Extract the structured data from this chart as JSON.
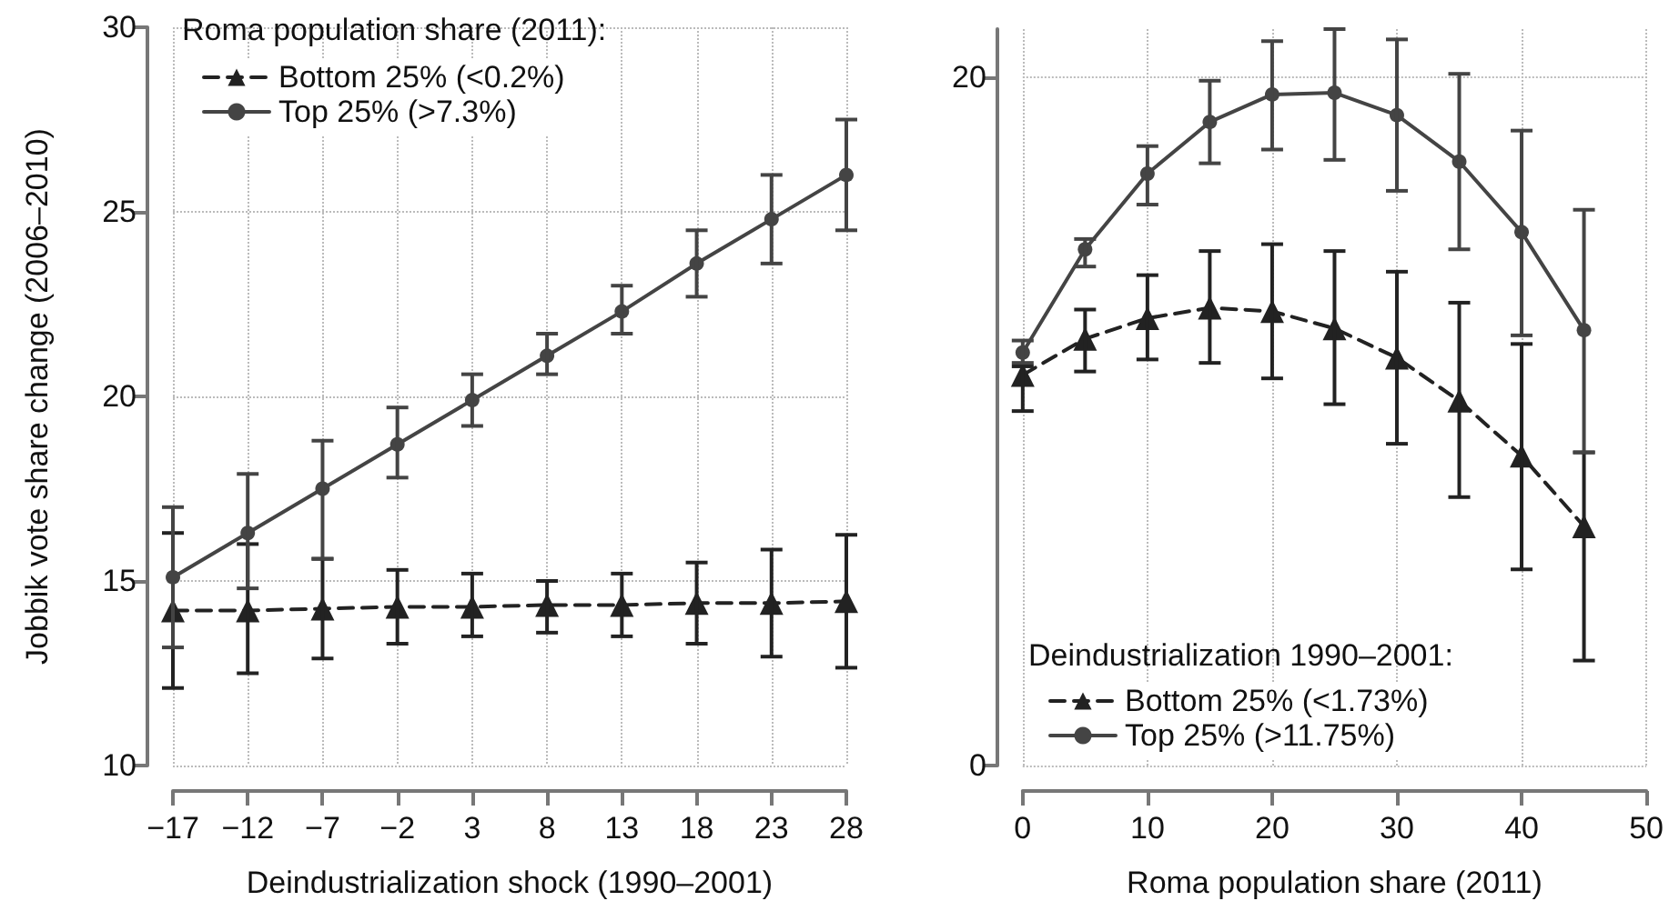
{
  "chart_data": [
    {
      "type": "line",
      "xlabel": "Deindustrialization shock (1990–2001)",
      "ylabel": "Jobbik vote share change (2006–2010)",
      "legend_title": "Roma population share (2011):",
      "x": [
        -17,
        -12,
        -7,
        -2,
        3,
        8,
        13,
        18,
        23,
        28
      ],
      "xlim": [
        -17,
        28
      ],
      "xticks": [
        -17,
        -12,
        -7,
        -2,
        3,
        8,
        13,
        18,
        23,
        28
      ],
      "ylim": [
        10,
        30
      ],
      "yticks": [
        10,
        15,
        20,
        25,
        30
      ],
      "grid": true,
      "legend": "top left",
      "series": [
        {
          "name": "Bottom 25% (<0.2%)",
          "color": "#222222",
          "marker": "triangle",
          "line_style": "dashed",
          "values": [
            14.2,
            14.2,
            14.25,
            14.3,
            14.3,
            14.35,
            14.35,
            14.4,
            14.4,
            14.45
          ],
          "errors": [
            [
              12.1,
              16.3
            ],
            [
              12.5,
              16.0
            ],
            [
              12.9,
              15.6
            ],
            [
              13.3,
              15.3
            ],
            [
              13.5,
              15.2
            ],
            [
              13.6,
              15.0
            ],
            [
              13.5,
              15.2
            ],
            [
              13.3,
              15.5
            ],
            [
              12.95,
              15.85
            ],
            [
              12.65,
              16.25
            ]
          ]
        },
        {
          "name": "Top 25% (>7.3%)",
          "color": "#444444",
          "marker": "circle",
          "line_style": "solid",
          "values": [
            15.1,
            16.3,
            17.5,
            18.7,
            19.9,
            21.1,
            22.3,
            23.6,
            24.8,
            26.0
          ],
          "errors": [
            [
              13.2,
              17.0
            ],
            [
              14.8,
              17.9
            ],
            [
              15.6,
              18.8
            ],
            [
              17.8,
              19.7
            ],
            [
              19.2,
              20.6
            ],
            [
              20.6,
              21.7
            ],
            [
              21.7,
              23.0
            ],
            [
              22.7,
              24.5
            ],
            [
              23.6,
              26.0
            ],
            [
              24.5,
              27.5
            ]
          ]
        }
      ]
    },
    {
      "type": "line",
      "xlabel": "Roma population share (2011)",
      "legend_title": "Deindustrialization 1990–2001:",
      "x": [
        0,
        5,
        10,
        15,
        20,
        25,
        30,
        35,
        40,
        45
      ],
      "xlim": [
        0,
        50
      ],
      "xticks": [
        0,
        10,
        20,
        30,
        40,
        50
      ],
      "ylim": [
        0,
        21.4
      ],
      "yticks": [
        0,
        20
      ],
      "grid": true,
      "legend": "bottom left",
      "series": [
        {
          "name": "Bottom 25% (<1.73%)",
          "color": "#222222",
          "marker": "triangle",
          "line_style": "dashed",
          "values": [
            11.35,
            12.4,
            13.0,
            13.3,
            13.2,
            12.7,
            11.85,
            10.6,
            9.0,
            6.95
          ],
          "errors": [
            [
              10.3,
              11.6
            ],
            [
              11.45,
              13.25
            ],
            [
              11.8,
              14.25
            ],
            [
              11.7,
              14.95
            ],
            [
              11.25,
              15.15
            ],
            [
              10.5,
              14.95
            ],
            [
              9.35,
              14.35
            ],
            [
              7.8,
              13.45
            ],
            [
              5.7,
              12.25
            ],
            [
              3.05,
              9.1
            ]
          ]
        },
        {
          "name": "Top 25% (>11.75%)",
          "color": "#444444",
          "marker": "circle",
          "line_style": "solid",
          "values": [
            12.0,
            15.0,
            17.2,
            18.7,
            19.5,
            19.55,
            18.9,
            17.55,
            15.5,
            12.65
          ],
          "errors": [
            [
              11.7,
              12.35
            ],
            [
              14.5,
              15.3
            ],
            [
              16.3,
              18.0
            ],
            [
              17.5,
              19.9
            ],
            [
              17.9,
              21.05
            ],
            [
              17.6,
              21.4
            ],
            [
              16.7,
              21.1
            ],
            [
              15.0,
              20.1
            ],
            [
              12.5,
              18.45
            ],
            [
              9.1,
              16.15
            ]
          ]
        }
      ]
    }
  ]
}
